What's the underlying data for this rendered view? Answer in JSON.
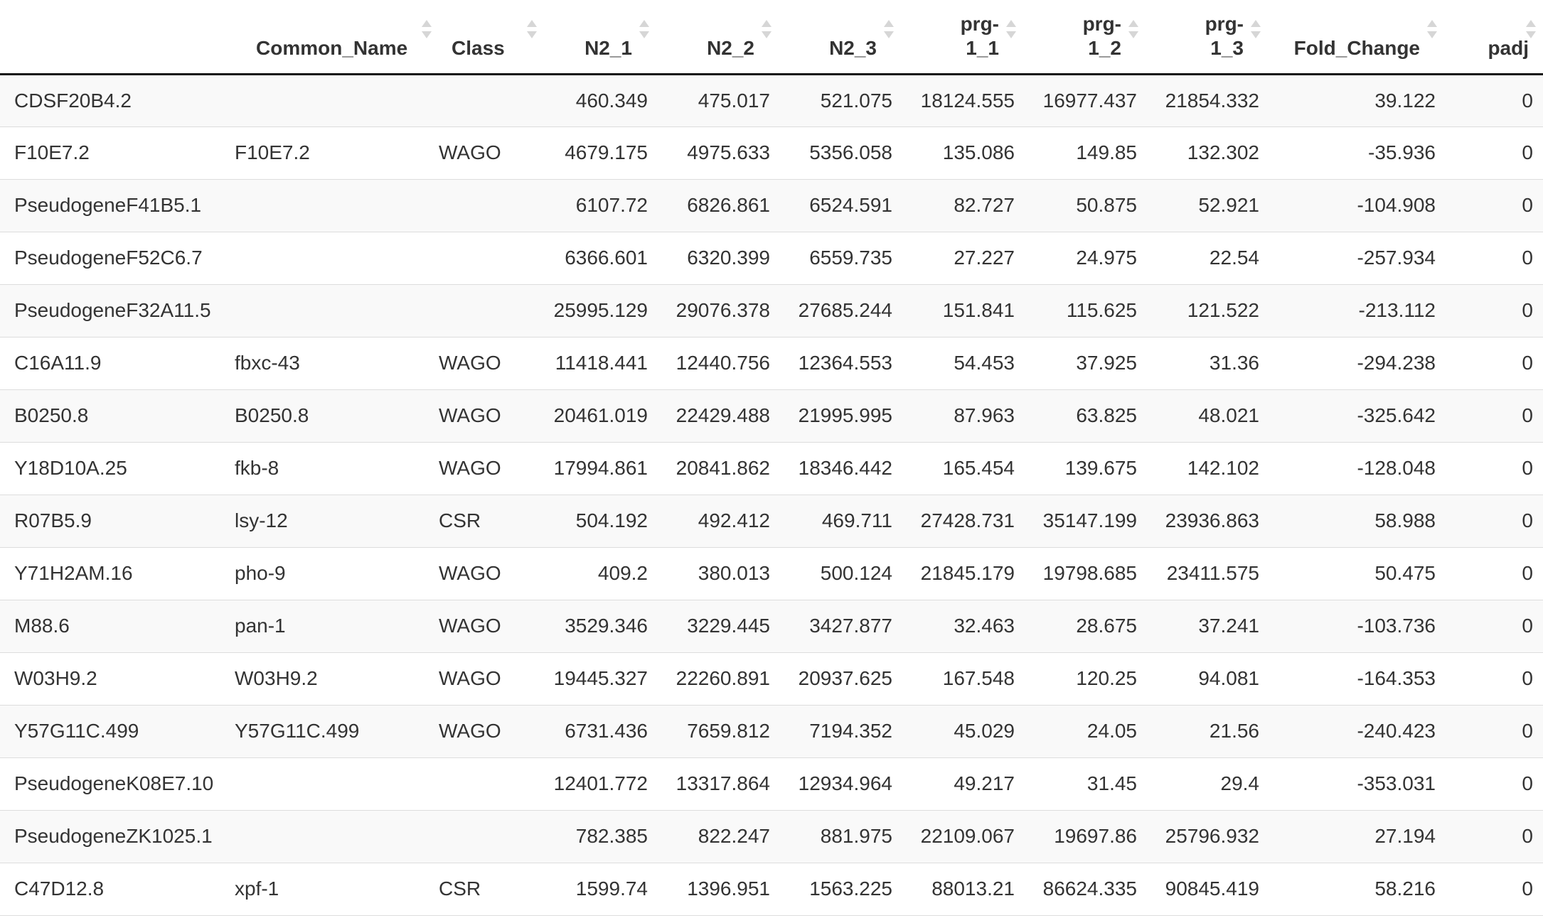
{
  "table": {
    "columns": [
      {
        "key": "gene",
        "label": ""
      },
      {
        "key": "common_name",
        "label": "Common_Name"
      },
      {
        "key": "class",
        "label": "Class"
      },
      {
        "key": "n2_1",
        "label": "N2_1"
      },
      {
        "key": "n2_2",
        "label": "N2_2"
      },
      {
        "key": "n2_3",
        "label": "N2_3"
      },
      {
        "key": "prg_1_1",
        "label_line1": "prg-",
        "label_line2": "1_1"
      },
      {
        "key": "prg_1_2",
        "label_line1": "prg-",
        "label_line2": "1_2"
      },
      {
        "key": "prg_1_3",
        "label_line1": "prg-",
        "label_line2": "1_3"
      },
      {
        "key": "fold_change",
        "label": "Fold_Change"
      },
      {
        "key": "padj",
        "label": "padj"
      }
    ],
    "rows": [
      [
        "CDSF20B4.2",
        "",
        "",
        "460.349",
        "475.017",
        "521.075",
        "18124.555",
        "16977.437",
        "21854.332",
        "39.122",
        "0"
      ],
      [
        "F10E7.2",
        "F10E7.2",
        "WAGO",
        "4679.175",
        "4975.633",
        "5356.058",
        "135.086",
        "149.85",
        "132.302",
        "-35.936",
        "0"
      ],
      [
        "PseudogeneF41B5.1",
        "",
        "",
        "6107.72",
        "6826.861",
        "6524.591",
        "82.727",
        "50.875",
        "52.921",
        "-104.908",
        "0"
      ],
      [
        "PseudogeneF52C6.7",
        "",
        "",
        "6366.601",
        "6320.399",
        "6559.735",
        "27.227",
        "24.975",
        "22.54",
        "-257.934",
        "0"
      ],
      [
        "PseudogeneF32A11.5",
        "",
        "",
        "25995.129",
        "29076.378",
        "27685.244",
        "151.841",
        "115.625",
        "121.522",
        "-213.112",
        "0"
      ],
      [
        "C16A11.9",
        "fbxc-43",
        "WAGO",
        "11418.441",
        "12440.756",
        "12364.553",
        "54.453",
        "37.925",
        "31.36",
        "-294.238",
        "0"
      ],
      [
        "B0250.8",
        "B0250.8",
        "WAGO",
        "20461.019",
        "22429.488",
        "21995.995",
        "87.963",
        "63.825",
        "48.021",
        "-325.642",
        "0"
      ],
      [
        "Y18D10A.25",
        "fkb-8",
        "WAGO",
        "17994.861",
        "20841.862",
        "18346.442",
        "165.454",
        "139.675",
        "142.102",
        "-128.048",
        "0"
      ],
      [
        "R07B5.9",
        "lsy-12",
        "CSR",
        "504.192",
        "492.412",
        "469.711",
        "27428.731",
        "35147.199",
        "23936.863",
        "58.988",
        "0"
      ],
      [
        "Y71H2AM.16",
        "pho-9",
        "WAGO",
        "409.2",
        "380.013",
        "500.124",
        "21845.179",
        "19798.685",
        "23411.575",
        "50.475",
        "0"
      ],
      [
        "M88.6",
        "pan-1",
        "WAGO",
        "3529.346",
        "3229.445",
        "3427.877",
        "32.463",
        "28.675",
        "37.241",
        "-103.736",
        "0"
      ],
      [
        "W03H9.2",
        "W03H9.2",
        "WAGO",
        "19445.327",
        "22260.891",
        "20937.625",
        "167.548",
        "120.25",
        "94.081",
        "-164.353",
        "0"
      ],
      [
        "Y57G11C.499",
        "Y57G11C.499",
        "WAGO",
        "6731.436",
        "7659.812",
        "7194.352",
        "45.029",
        "24.05",
        "21.56",
        "-240.423",
        "0"
      ],
      [
        "PseudogeneK08E7.10",
        "",
        "",
        "12401.772",
        "13317.864",
        "12934.964",
        "49.217",
        "31.45",
        "29.4",
        "-353.031",
        "0"
      ],
      [
        "PseudogeneZK1025.1",
        "",
        "",
        "782.385",
        "822.247",
        "881.975",
        "22109.067",
        "19697.86",
        "25796.932",
        "27.194",
        "0"
      ],
      [
        "C47D12.8",
        "xpf-1",
        "CSR",
        "1599.74",
        "1396.951",
        "1563.225",
        "88013.21",
        "86624.335",
        "90845.419",
        "58.216",
        "0"
      ]
    ]
  },
  "colors": {
    "header_border": "#111111",
    "row_border": "#dddddd",
    "stripe": "#f9f9f9",
    "sort_icon": "#d6d6d6",
    "text": "#333333"
  }
}
